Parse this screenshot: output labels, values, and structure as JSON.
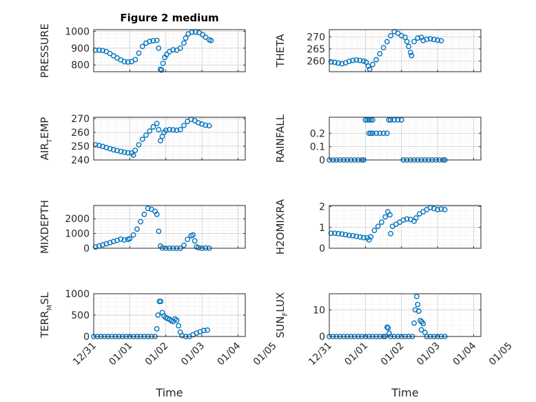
{
  "figure": {
    "background": "#ffffff",
    "marker_color": "#0072BD",
    "axis_color": "#262626"
  },
  "chart_data": [
    {
      "type": "scatter",
      "title": "Figure 2 medium",
      "xlabel": "",
      "ylabel": {
        "text": "PRESSURE"
      },
      "xlim": [
        0,
        4.2
      ],
      "ylim": [
        760,
        1010
      ],
      "yticks": [
        800,
        900,
        1000
      ],
      "xticks": [],
      "grid": true,
      "marker": "circle-open",
      "points": [
        [
          0.05,
          888
        ],
        [
          0.15,
          888
        ],
        [
          0.25,
          886
        ],
        [
          0.35,
          880
        ],
        [
          0.45,
          868
        ],
        [
          0.55,
          855
        ],
        [
          0.65,
          842
        ],
        [
          0.75,
          830
        ],
        [
          0.85,
          820
        ],
        [
          0.95,
          818
        ],
        [
          1.05,
          820
        ],
        [
          1.15,
          832
        ],
        [
          1.25,
          870
        ],
        [
          1.35,
          910
        ],
        [
          1.45,
          930
        ],
        [
          1.55,
          940
        ],
        [
          1.65,
          944
        ],
        [
          1.75,
          946
        ],
        [
          1.8,
          900
        ],
        [
          1.85,
          775
        ],
        [
          1.88,
          770
        ],
        [
          1.92,
          810
        ],
        [
          1.97,
          845
        ],
        [
          2.02,
          862
        ],
        [
          2.1,
          880
        ],
        [
          2.2,
          890
        ],
        [
          2.3,
          888
        ],
        [
          2.4,
          900
        ],
        [
          2.5,
          930
        ],
        [
          2.55,
          960
        ],
        [
          2.62,
          985
        ],
        [
          2.72,
          995
        ],
        [
          2.82,
          996
        ],
        [
          2.92,
          992
        ],
        [
          3.02,
          980
        ],
        [
          3.1,
          965
        ],
        [
          3.2,
          950
        ],
        [
          3.25,
          945
        ]
      ]
    },
    {
      "type": "scatter",
      "title": "",
      "xlabel": "",
      "ylabel": {
        "text": "THETA"
      },
      "xlim": [
        0,
        4.2
      ],
      "ylim": [
        255.5,
        273
      ],
      "yticks": [
        260,
        265,
        270
      ],
      "xticks": [],
      "grid": true,
      "marker": "circle-open",
      "points": [
        [
          0.05,
          259.6
        ],
        [
          0.15,
          259.4
        ],
        [
          0.25,
          259.1
        ],
        [
          0.35,
          258.8
        ],
        [
          0.45,
          259.2
        ],
        [
          0.55,
          259.8
        ],
        [
          0.65,
          260.2
        ],
        [
          0.75,
          260.4
        ],
        [
          0.85,
          260.2
        ],
        [
          0.95,
          259.9
        ],
        [
          1.02,
          259.5
        ],
        [
          1.08,
          257.8
        ],
        [
          1.12,
          256.5
        ],
        [
          1.2,
          258.5
        ],
        [
          1.3,
          260.5
        ],
        [
          1.4,
          263
        ],
        [
          1.5,
          265.5
        ],
        [
          1.6,
          268
        ],
        [
          1.7,
          270.5
        ],
        [
          1.8,
          272.2
        ],
        [
          1.9,
          271.5
        ],
        [
          2.0,
          270.5
        ],
        [
          2.1,
          269.8
        ],
        [
          2.15,
          268
        ],
        [
          2.2,
          266
        ],
        [
          2.25,
          263.5
        ],
        [
          2.28,
          262.2
        ],
        [
          2.35,
          268
        ],
        [
          2.45,
          269.5
        ],
        [
          2.55,
          269.8
        ],
        [
          2.6,
          268.5
        ],
        [
          2.7,
          269
        ],
        [
          2.8,
          269.2
        ],
        [
          2.9,
          268.9
        ],
        [
          3.0,
          268.6
        ],
        [
          3.1,
          268.4
        ]
      ]
    },
    {
      "type": "scatter",
      "title": "",
      "xlabel": "",
      "ylabel": {
        "text": "AIR",
        "sub": "T",
        "rest": "EMP"
      },
      "xlim": [
        0,
        4.2
      ],
      "ylim": [
        240,
        271
      ],
      "yticks": [
        240,
        250,
        260,
        270
      ],
      "xticks": [],
      "grid": true,
      "marker": "circle-open",
      "points": [
        [
          0.05,
          251
        ],
        [
          0.15,
          250.5
        ],
        [
          0.25,
          249.8
        ],
        [
          0.35,
          249
        ],
        [
          0.45,
          248.2
        ],
        [
          0.55,
          247.4
        ],
        [
          0.65,
          246.8
        ],
        [
          0.75,
          246.2
        ],
        [
          0.85,
          245.6
        ],
        [
          0.95,
          245.2
        ],
        [
          1.05,
          245
        ],
        [
          1.1,
          243.5
        ],
        [
          1.15,
          247
        ],
        [
          1.25,
          251
        ],
        [
          1.35,
          255
        ],
        [
          1.45,
          258
        ],
        [
          1.55,
          261
        ],
        [
          1.65,
          264
        ],
        [
          1.75,
          266.5
        ],
        [
          1.8,
          262
        ],
        [
          1.85,
          254
        ],
        [
          1.9,
          257
        ],
        [
          1.95,
          260
        ],
        [
          2.0,
          261.5
        ],
        [
          2.1,
          262
        ],
        [
          2.2,
          261.8
        ],
        [
          2.3,
          261.5
        ],
        [
          2.4,
          262
        ],
        [
          2.5,
          265
        ],
        [
          2.6,
          268
        ],
        [
          2.7,
          269.5
        ],
        [
          2.8,
          268.5
        ],
        [
          2.9,
          267
        ],
        [
          3.0,
          266
        ],
        [
          3.1,
          265.2
        ],
        [
          3.2,
          264.8
        ]
      ]
    },
    {
      "type": "scatter",
      "title": "",
      "xlabel": "",
      "ylabel": {
        "text": "RAINFALL"
      },
      "xlim": [
        0,
        4.2
      ],
      "ylim": [
        0,
        0.32
      ],
      "yticks": [
        0,
        0.1,
        0.2
      ],
      "xticks": [],
      "grid": true,
      "marker": "circle-open",
      "points": [
        [
          0.0,
          0
        ],
        [
          0.1,
          0
        ],
        [
          0.2,
          0
        ],
        [
          0.3,
          0
        ],
        [
          0.4,
          0
        ],
        [
          0.5,
          0
        ],
        [
          0.6,
          0
        ],
        [
          0.7,
          0
        ],
        [
          0.8,
          0
        ],
        [
          0.9,
          0
        ],
        [
          0.95,
          0
        ],
        [
          1.0,
          0.3
        ],
        [
          1.05,
          0.3
        ],
        [
          1.1,
          0.3
        ],
        [
          1.15,
          0.3
        ],
        [
          1.2,
          0.3
        ],
        [
          1.1,
          0.2
        ],
        [
          1.15,
          0.2
        ],
        [
          1.2,
          0.2
        ],
        [
          1.3,
          0.2
        ],
        [
          1.4,
          0.2
        ],
        [
          1.5,
          0.2
        ],
        [
          1.6,
          0.2
        ],
        [
          1.65,
          0.3
        ],
        [
          1.7,
          0.3
        ],
        [
          1.8,
          0.3
        ],
        [
          1.9,
          0.3
        ],
        [
          2.0,
          0.3
        ],
        [
          2.05,
          0
        ],
        [
          2.15,
          0
        ],
        [
          2.25,
          0
        ],
        [
          2.35,
          0
        ],
        [
          2.45,
          0
        ],
        [
          2.55,
          0
        ],
        [
          2.65,
          0
        ],
        [
          2.75,
          0
        ],
        [
          2.85,
          0
        ],
        [
          2.95,
          0
        ],
        [
          3.05,
          0
        ],
        [
          3.15,
          0
        ],
        [
          3.2,
          0
        ]
      ]
    },
    {
      "type": "scatter",
      "title": "",
      "xlabel": "",
      "ylabel": {
        "text": "MIXDEPTH"
      },
      "xlim": [
        0,
        4.2
      ],
      "ylim": [
        0,
        2900
      ],
      "yticks": [
        0,
        1000,
        2000
      ],
      "xticks": [],
      "grid": true,
      "marker": "circle-open",
      "points": [
        [
          0.05,
          80
        ],
        [
          0.15,
          150
        ],
        [
          0.25,
          230
        ],
        [
          0.35,
          300
        ],
        [
          0.45,
          380
        ],
        [
          0.55,
          460
        ],
        [
          0.65,
          530
        ],
        [
          0.75,
          620
        ],
        [
          0.85,
          560
        ],
        [
          0.95,
          600
        ],
        [
          1.0,
          650
        ],
        [
          1.1,
          900
        ],
        [
          1.2,
          1300
        ],
        [
          1.3,
          1800
        ],
        [
          1.4,
          2300
        ],
        [
          1.5,
          2700
        ],
        [
          1.6,
          2650
        ],
        [
          1.7,
          2500
        ],
        [
          1.75,
          2300
        ],
        [
          1.8,
          1150
        ],
        [
          1.85,
          150
        ],
        [
          1.9,
          20
        ],
        [
          2.0,
          0
        ],
        [
          2.1,
          0
        ],
        [
          2.2,
          0
        ],
        [
          2.3,
          0
        ],
        [
          2.4,
          0
        ],
        [
          2.5,
          200
        ],
        [
          2.6,
          600
        ],
        [
          2.7,
          850
        ],
        [
          2.75,
          900
        ],
        [
          2.8,
          500
        ],
        [
          2.85,
          100
        ],
        [
          2.9,
          30
        ],
        [
          3.0,
          0
        ],
        [
          3.1,
          20
        ],
        [
          3.2,
          0
        ]
      ]
    },
    {
      "type": "scatter",
      "title": "",
      "xlabel": "",
      "ylabel": {
        "text": "H2OMIXRA"
      },
      "xlim": [
        0,
        4.2
      ],
      "ylim": [
        0,
        2.05
      ],
      "yticks": [
        0,
        1,
        2
      ],
      "xticks": [],
      "grid": true,
      "marker": "circle-open",
      "points": [
        [
          0.05,
          0.72
        ],
        [
          0.15,
          0.72
        ],
        [
          0.25,
          0.7
        ],
        [
          0.35,
          0.68
        ],
        [
          0.45,
          0.65
        ],
        [
          0.55,
          0.62
        ],
        [
          0.65,
          0.6
        ],
        [
          0.75,
          0.57
        ],
        [
          0.85,
          0.54
        ],
        [
          0.95,
          0.51
        ],
        [
          1.05,
          0.5
        ],
        [
          1.1,
          0.4
        ],
        [
          1.15,
          0.55
        ],
        [
          1.25,
          0.85
        ],
        [
          1.35,
          1.05
        ],
        [
          1.45,
          1.25
        ],
        [
          1.55,
          1.5
        ],
        [
          1.62,
          1.75
        ],
        [
          1.68,
          1.6
        ],
        [
          1.7,
          0.7
        ],
        [
          1.75,
          1.05
        ],
        [
          1.85,
          1.15
        ],
        [
          1.95,
          1.25
        ],
        [
          2.05,
          1.35
        ],
        [
          2.15,
          1.4
        ],
        [
          2.25,
          1.38
        ],
        [
          2.35,
          1.3
        ],
        [
          2.4,
          1.45
        ],
        [
          2.5,
          1.65
        ],
        [
          2.6,
          1.75
        ],
        [
          2.7,
          1.85
        ],
        [
          2.8,
          1.95
        ],
        [
          2.9,
          1.9
        ],
        [
          3.0,
          1.85
        ],
        [
          3.1,
          1.88
        ],
        [
          3.2,
          1.85
        ]
      ]
    },
    {
      "type": "scatter",
      "title": "",
      "xlabel": "Time",
      "ylabel": {
        "text": "TERR",
        "sub": "M",
        "rest": "SL"
      },
      "xlim": [
        0,
        4.2
      ],
      "ylim": [
        0,
        1000
      ],
      "yticks": [
        0,
        500,
        1000
      ],
      "xticks": [
        "12/31",
        "01/01",
        "01/02",
        "01/03",
        "01/04",
        "01/05"
      ],
      "grid": true,
      "marker": "circle-open",
      "points": [
        [
          0.0,
          0
        ],
        [
          0.1,
          0
        ],
        [
          0.2,
          0
        ],
        [
          0.3,
          0
        ],
        [
          0.4,
          0
        ],
        [
          0.5,
          0
        ],
        [
          0.6,
          0
        ],
        [
          0.7,
          0
        ],
        [
          0.8,
          0
        ],
        [
          0.9,
          0
        ],
        [
          1.0,
          0
        ],
        [
          1.1,
          0
        ],
        [
          1.2,
          0
        ],
        [
          1.3,
          0
        ],
        [
          1.4,
          0
        ],
        [
          1.5,
          0
        ],
        [
          1.6,
          0
        ],
        [
          1.7,
          0
        ],
        [
          1.75,
          180
        ],
        [
          1.78,
          500
        ],
        [
          1.82,
          820
        ],
        [
          1.86,
          820
        ],
        [
          1.9,
          560
        ],
        [
          1.95,
          480
        ],
        [
          2.0,
          440
        ],
        [
          2.05,
          420
        ],
        [
          2.1,
          400
        ],
        [
          2.15,
          370
        ],
        [
          2.2,
          350
        ],
        [
          2.25,
          410
        ],
        [
          2.3,
          380
        ],
        [
          2.35,
          250
        ],
        [
          2.4,
          100
        ],
        [
          2.45,
          20
        ],
        [
          2.55,
          0
        ],
        [
          2.65,
          0
        ],
        [
          2.75,
          40
        ],
        [
          2.85,
          80
        ],
        [
          2.95,
          110
        ],
        [
          3.05,
          140
        ],
        [
          3.15,
          150
        ]
      ]
    },
    {
      "type": "scatter",
      "title": "",
      "xlabel": "Time",
      "ylabel": {
        "text": "SUN",
        "sub": "F",
        "rest": "LUX"
      },
      "xlim": [
        0,
        4.2
      ],
      "ylim": [
        0,
        16
      ],
      "yticks": [
        0,
        10
      ],
      "xticks": [
        "12/31",
        "01/01",
        "01/02",
        "01/03",
        "01/04",
        "01/05"
      ],
      "grid": true,
      "marker": "circle-open",
      "points": [
        [
          0.0,
          0
        ],
        [
          0.1,
          0
        ],
        [
          0.2,
          0
        ],
        [
          0.3,
          0
        ],
        [
          0.4,
          0
        ],
        [
          0.5,
          0
        ],
        [
          0.6,
          0
        ],
        [
          0.7,
          0
        ],
        [
          0.8,
          0
        ],
        [
          0.9,
          0
        ],
        [
          1.0,
          0
        ],
        [
          1.1,
          0
        ],
        [
          1.2,
          0
        ],
        [
          1.3,
          0
        ],
        [
          1.4,
          0
        ],
        [
          1.5,
          0
        ],
        [
          1.55,
          0
        ],
        [
          1.6,
          3.5
        ],
        [
          1.63,
          3.2
        ],
        [
          1.66,
          1.2
        ],
        [
          1.7,
          0
        ],
        [
          1.8,
          0
        ],
        [
          1.9,
          0
        ],
        [
          2.0,
          0
        ],
        [
          2.1,
          0
        ],
        [
          2.2,
          0
        ],
        [
          2.3,
          0
        ],
        [
          2.35,
          5
        ],
        [
          2.38,
          10
        ],
        [
          2.42,
          15
        ],
        [
          2.45,
          12
        ],
        [
          2.48,
          9.5
        ],
        [
          2.52,
          6
        ],
        [
          2.56,
          5.5
        ],
        [
          2.6,
          4.8
        ],
        [
          2.55,
          2.5
        ],
        [
          2.65,
          1.5
        ],
        [
          2.7,
          0
        ],
        [
          2.8,
          0
        ],
        [
          2.9,
          0
        ],
        [
          3.0,
          0
        ],
        [
          3.1,
          0
        ],
        [
          3.2,
          0
        ]
      ]
    }
  ]
}
